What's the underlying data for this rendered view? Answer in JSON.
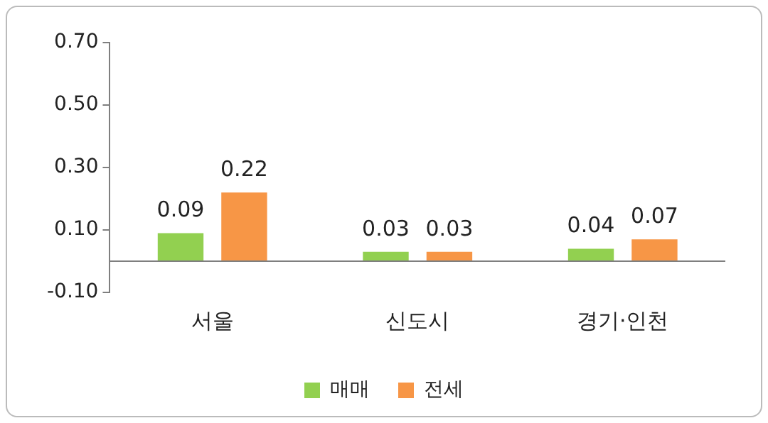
{
  "chart_data": {
    "type": "bar",
    "categories": [
      "서울",
      "신도시",
      "경기·인천"
    ],
    "series": [
      {
        "name": "매매",
        "color": "#92d050",
        "values": [
          0.09,
          0.03,
          0.04
        ],
        "value_labels": [
          "0.09",
          "0.03",
          "0.04"
        ]
      },
      {
        "name": "전세",
        "color": "#f79646",
        "values": [
          0.22,
          0.03,
          0.07
        ],
        "value_labels": [
          "0.22",
          "0.03",
          "0.07"
        ]
      }
    ],
    "ylim": [
      -0.1,
      0.7
    ],
    "yticks": [
      {
        "value": -0.1,
        "label": "-0.10"
      },
      {
        "value": 0.1,
        "label": "0.10"
      },
      {
        "value": 0.3,
        "label": "0.30"
      },
      {
        "value": 0.5,
        "label": "0.50"
      },
      {
        "value": 0.7,
        "label": "0.70"
      }
    ],
    "grid": false,
    "legend": "bottom"
  }
}
